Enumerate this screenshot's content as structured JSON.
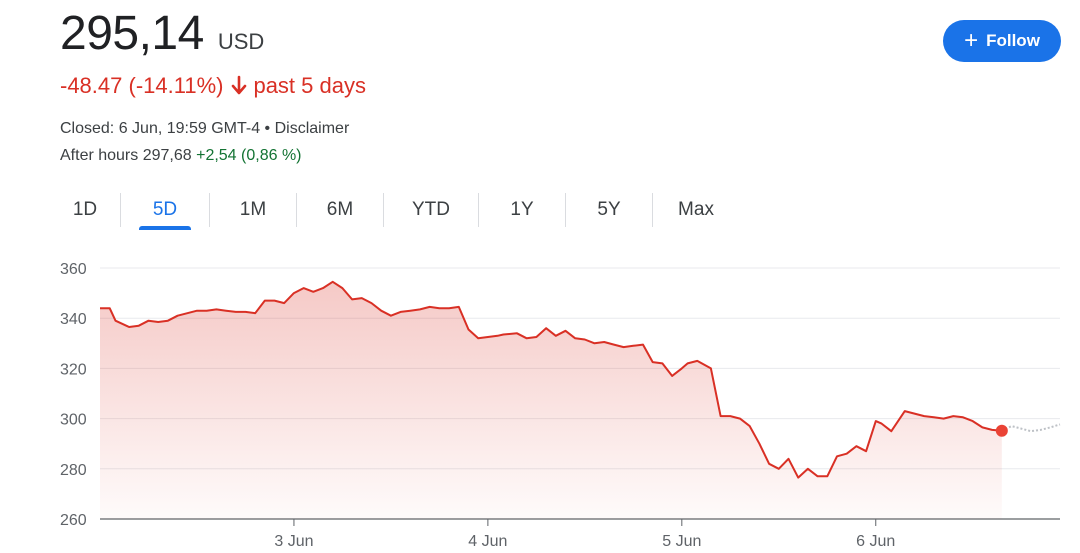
{
  "quote": {
    "price": "295,14",
    "currency": "USD",
    "change": "-48.47 (-14.11%)",
    "change_period": "past 5 days",
    "closed_text": "Closed: 6 Jun, 19:59 GMT-4 • Disclaimer",
    "after_hours_label": "After hours 297,68",
    "after_hours_change": "+2,54 (0,86 %)"
  },
  "follow_button": {
    "label": "Follow",
    "icon": "plus-icon"
  },
  "tabs": [
    {
      "label": "1D",
      "active": false
    },
    {
      "label": "5D",
      "active": true
    },
    {
      "label": "1M",
      "active": false
    },
    {
      "label": "6M",
      "active": false
    },
    {
      "label": "YTD",
      "active": false
    },
    {
      "label": "1Y",
      "active": false
    },
    {
      "label": "5Y",
      "active": false
    },
    {
      "label": "Max",
      "active": false
    }
  ],
  "colors": {
    "negative": "#d93025",
    "positive": "#137333",
    "accent": "#1a73e8",
    "after_hours_line": "#bdc1c6"
  },
  "chart_data": {
    "type": "area",
    "title": "",
    "xlabel": "",
    "ylabel": "",
    "ylim": [
      260,
      360
    ],
    "y_ticks": [
      360,
      340,
      320,
      300,
      280,
      260
    ],
    "x_ticks": [
      "3 Jun",
      "4 Jun",
      "5 Jun",
      "6 Jun"
    ],
    "grid": true,
    "series": [
      {
        "x": [
          2.0,
          2.05,
          2.08,
          2.15,
          2.2,
          2.25,
          2.3,
          2.35,
          2.4,
          2.45,
          2.5,
          2.55,
          2.6,
          2.65,
          2.7,
          2.75,
          2.8,
          2.85,
          2.9,
          2.95,
          3.0,
          3.05,
          3.1,
          3.15,
          3.2,
          3.25,
          3.3,
          3.35,
          3.4,
          3.45,
          3.5,
          3.55,
          3.6,
          3.65,
          3.7,
          3.75,
          3.8,
          3.85,
          3.9,
          3.95,
          4.0,
          4.05,
          4.08,
          4.15,
          4.2,
          4.25,
          4.3,
          4.35,
          4.4,
          4.45,
          4.5,
          4.55,
          4.6,
          4.65,
          4.7,
          4.75,
          4.8,
          4.85,
          4.9,
          4.95,
          5.0,
          5.03,
          5.08,
          5.15,
          5.2,
          5.25,
          5.3,
          5.35,
          5.4,
          5.45,
          5.5,
          5.55,
          5.6,
          5.65,
          5.7,
          5.75,
          5.8,
          5.85,
          5.9,
          5.95,
          6.0,
          6.03,
          6.08,
          6.15,
          6.2,
          6.25,
          6.3,
          6.35,
          6.4,
          6.45,
          6.5,
          6.55,
          6.6,
          6.65
        ],
        "y": [
          344,
          344,
          339,
          336.5,
          337,
          339,
          338.5,
          339,
          341,
          342,
          343,
          343,
          343.5,
          343,
          342.5,
          342.5,
          342,
          347,
          347,
          346,
          350,
          352,
          350.5,
          352,
          354.5,
          352,
          347.5,
          348,
          346,
          343,
          341,
          342.5,
          343,
          343.5,
          344.5,
          344,
          344,
          344.5,
          335.5,
          332,
          332.5,
          333,
          333.5,
          334,
          332,
          332.5,
          336,
          333,
          335,
          332,
          331.5,
          330,
          330.5,
          329.5,
          328.5,
          329,
          329.5,
          322.5,
          322,
          317,
          320,
          322,
          323,
          320,
          301,
          301,
          300,
          297,
          290,
          282,
          280,
          284,
          276.5,
          280,
          277,
          277,
          285,
          286,
          289,
          287,
          299,
          298,
          295,
          303,
          302,
          301,
          300.5,
          300,
          301,
          300.5,
          299,
          296.5,
          295.5,
          295.14
        ]
      },
      {
        "name": "After hours",
        "x": [
          6.65,
          6.7,
          6.75,
          6.8,
          6.85,
          6.9,
          6.95
        ],
        "y": [
          295.14,
          297,
          296,
          295,
          295.5,
          296.5,
          297.68
        ]
      }
    ]
  }
}
